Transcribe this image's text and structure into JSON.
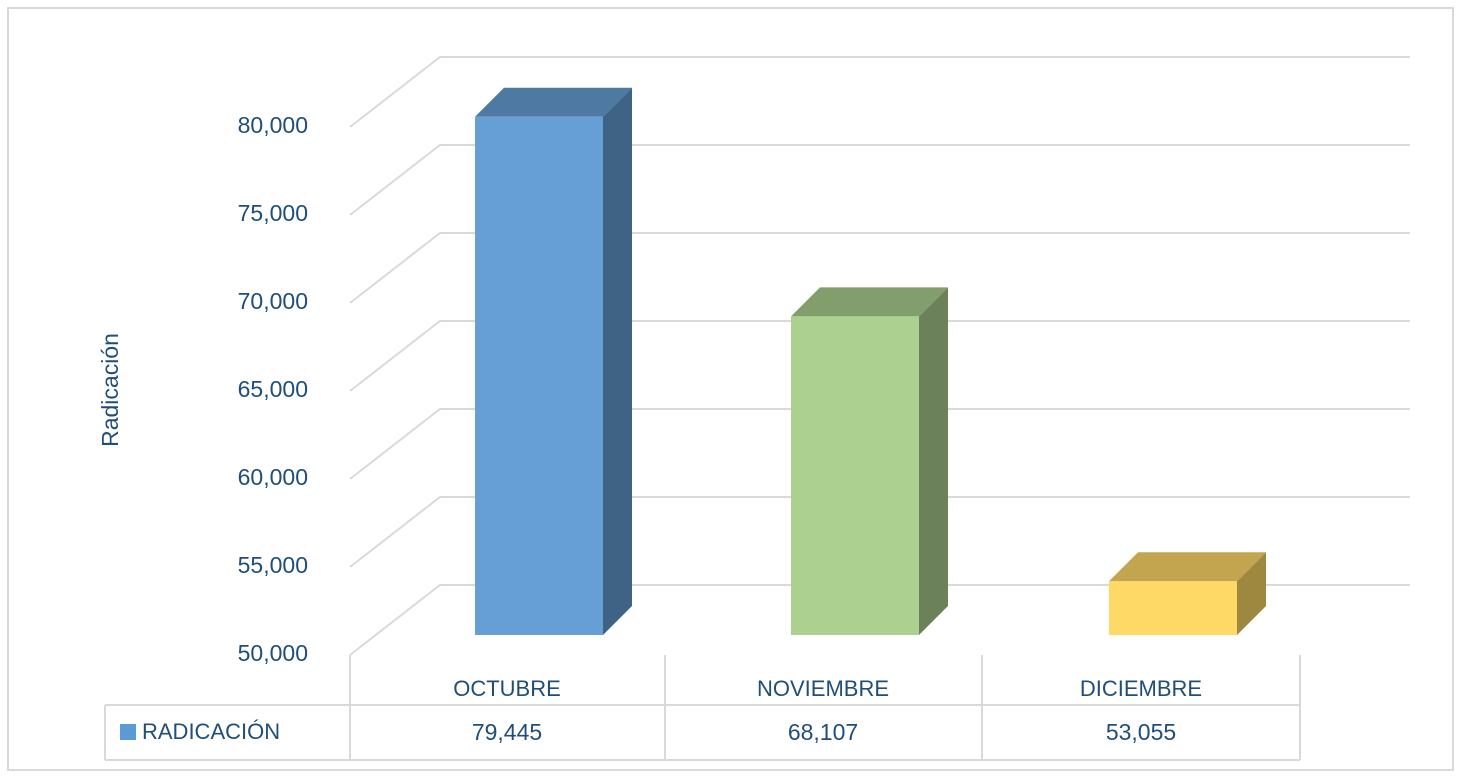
{
  "chart_data": {
    "type": "bar3d",
    "y_axis_label": "Radicación",
    "categories": [
      "OCTUBRE",
      "NOVIEMBRE",
      "DICIEMBRE"
    ],
    "series": [
      {
        "name": "RADICACIÓN",
        "color": "#5b9bd5",
        "values": [
          79445,
          68107,
          53055
        ],
        "value_labels": [
          "79,445",
          "68,107",
          "53,055"
        ],
        "colors": [
          "#659fd6",
          "#acd08f",
          "#ffd966"
        ]
      }
    ],
    "ylim": [
      50000,
      80000
    ],
    "yticks": [
      {
        "value": 50000,
        "label": "50,000"
      },
      {
        "value": 55000,
        "label": "55,000"
      },
      {
        "value": 60000,
        "label": "60,000"
      },
      {
        "value": 65000,
        "label": "65,000"
      },
      {
        "value": 70000,
        "label": "70,000"
      },
      {
        "value": 75000,
        "label": "75,000"
      },
      {
        "value": 80000,
        "label": "80,000"
      }
    ],
    "grid": true
  }
}
